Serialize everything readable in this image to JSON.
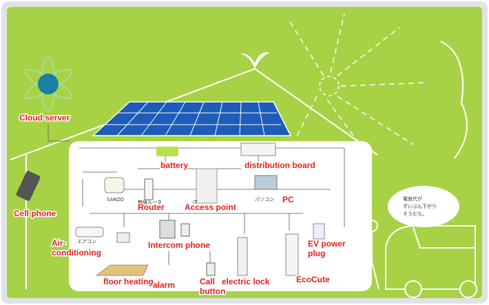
{
  "labels": {
    "cloud_server": "Cloud server",
    "battery": "battery",
    "distribution_board": "distribution board",
    "cell_phone": "Cell phone",
    "router": "Router",
    "access_point": "Access point",
    "pc": "PC",
    "air_conditioning": [
      "Air-",
      "conditioning"
    ],
    "intercom_phone": "Intercom phone",
    "ev_power_plug": [
      "EV power",
      "plug"
    ],
    "floor_heating": "floor heating",
    "alarm": "alarm",
    "call_button": [
      "Call",
      "button"
    ],
    "electric_lock": "electric lock",
    "ecocute": "EcoCute"
  },
  "small_texts": {
    "sanzo": "SANZO",
    "router_jp": "無線ルータ",
    "it": "IT",
    "pc_jp": "パソコン",
    "aircon_jp": "エアコン"
  },
  "speech_bubble": [
    "電気代が",
    "ずいぶん下がり",
    "そうだな。"
  ]
}
